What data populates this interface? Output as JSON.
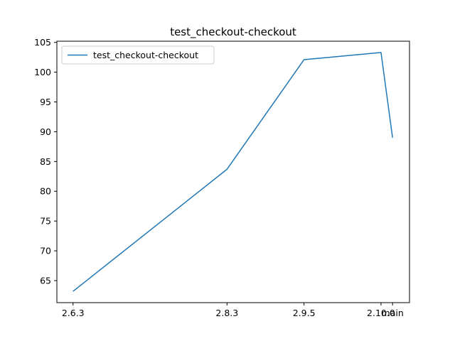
{
  "chart_data": {
    "type": "line",
    "title": "test_checkout-checkout",
    "xlabel": "",
    "ylabel": "",
    "x_positions": [
      6,
      8,
      9,
      10,
      10.15
    ],
    "categories": [
      "2.6.3",
      "2.8.3",
      "2.9.5",
      "2.10.0",
      "main"
    ],
    "series": [
      {
        "name": "test_checkout-checkout",
        "color": "#1f77b4",
        "values": [
          63.2,
          83.7,
          102.1,
          103.3,
          89.0
        ]
      }
    ],
    "ylim": [
      61.3,
      105.2
    ],
    "yticks": [
      65,
      70,
      75,
      80,
      85,
      90,
      95,
      100,
      105
    ],
    "legend": "top-left",
    "grid": false
  }
}
